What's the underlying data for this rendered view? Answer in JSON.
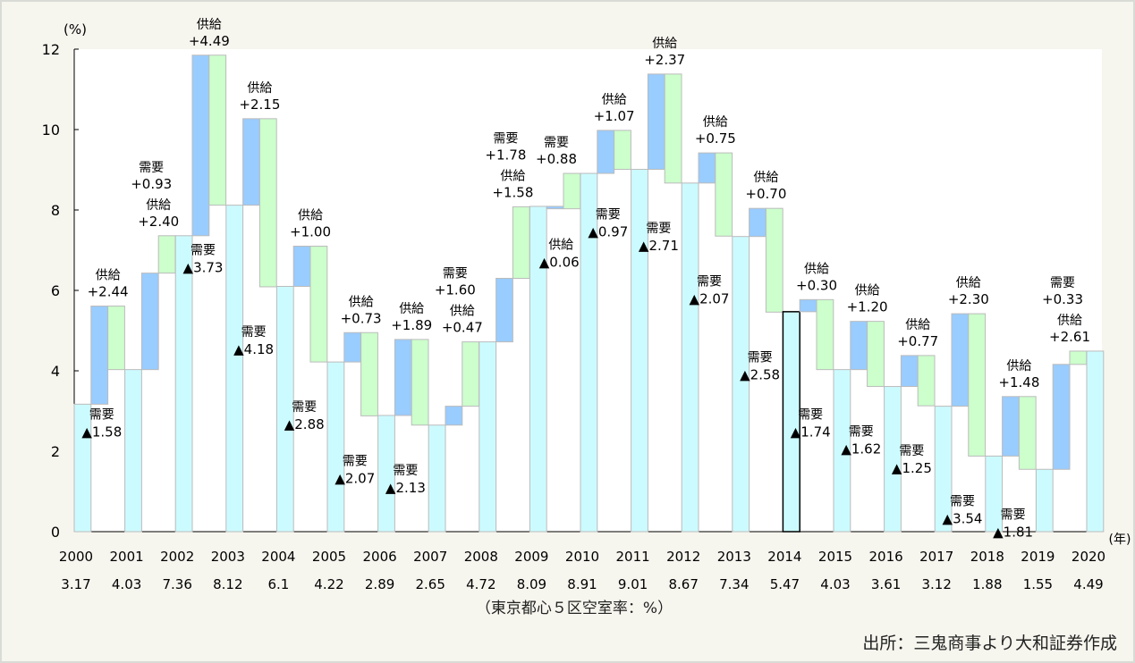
{
  "chart_data": {
    "type": "bar",
    "subtype": "waterfall",
    "y_unit": "(%)",
    "x_unit": "(年)",
    "ylim": [
      0,
      12
    ],
    "yticks": [
      0,
      2,
      4,
      6,
      8,
      10,
      12
    ],
    "years": [
      "2000",
      "2001",
      "2002",
      "2003",
      "2004",
      "2005",
      "2006",
      "2007",
      "2008",
      "2009",
      "2010",
      "2011",
      "2012",
      "2013",
      "2014",
      "2015",
      "2016",
      "2017",
      "2018",
      "2019",
      "2020"
    ],
    "vacancy_rate": [
      3.17,
      4.03,
      7.36,
      8.12,
      6.1,
      4.22,
      2.89,
      2.65,
      4.72,
      8.09,
      8.91,
      9.01,
      8.67,
      7.34,
      5.47,
      4.03,
      3.61,
      3.12,
      1.88,
      1.55,
      4.49
    ],
    "vacancy_labels": [
      "3.17",
      "4.03",
      "7.36",
      "8.12",
      "6.1",
      "4.22",
      "2.89",
      "2.65",
      "4.72",
      "8.09",
      "8.91",
      "9.01",
      "8.67",
      "7.34",
      "5.47",
      "4.03",
      "3.61",
      "3.12",
      "1.88",
      "1.55",
      "4.49"
    ],
    "supply_label": "供給",
    "demand_label": "需要",
    "supply": [
      2.44,
      2.4,
      4.49,
      2.15,
      1.0,
      0.73,
      1.89,
      0.47,
      1.58,
      -0.06,
      1.07,
      2.37,
      0.75,
      0.7,
      0.3,
      1.2,
      0.77,
      2.3,
      1.48,
      2.61
    ],
    "demand_effect": [
      -1.58,
      0.93,
      -3.73,
      -4.18,
      -2.88,
      -2.07,
      -2.13,
      1.6,
      1.78,
      0.88,
      -0.97,
      -2.71,
      -2.07,
      -2.58,
      -1.74,
      -1.62,
      -1.25,
      -3.54,
      -1.81,
      0.33
    ],
    "highlighted_year": "2014",
    "colors": {
      "vacancy": "#ccfbff",
      "supply": "#99ccff",
      "demand": "#ccffcc",
      "plot_bg": "#ffffff",
      "page_bg": "#f6f5ee"
    },
    "caption": "（東京都心５区空室率：%）",
    "source": "出所：三鬼商事より大和証券作成",
    "grid": false
  }
}
